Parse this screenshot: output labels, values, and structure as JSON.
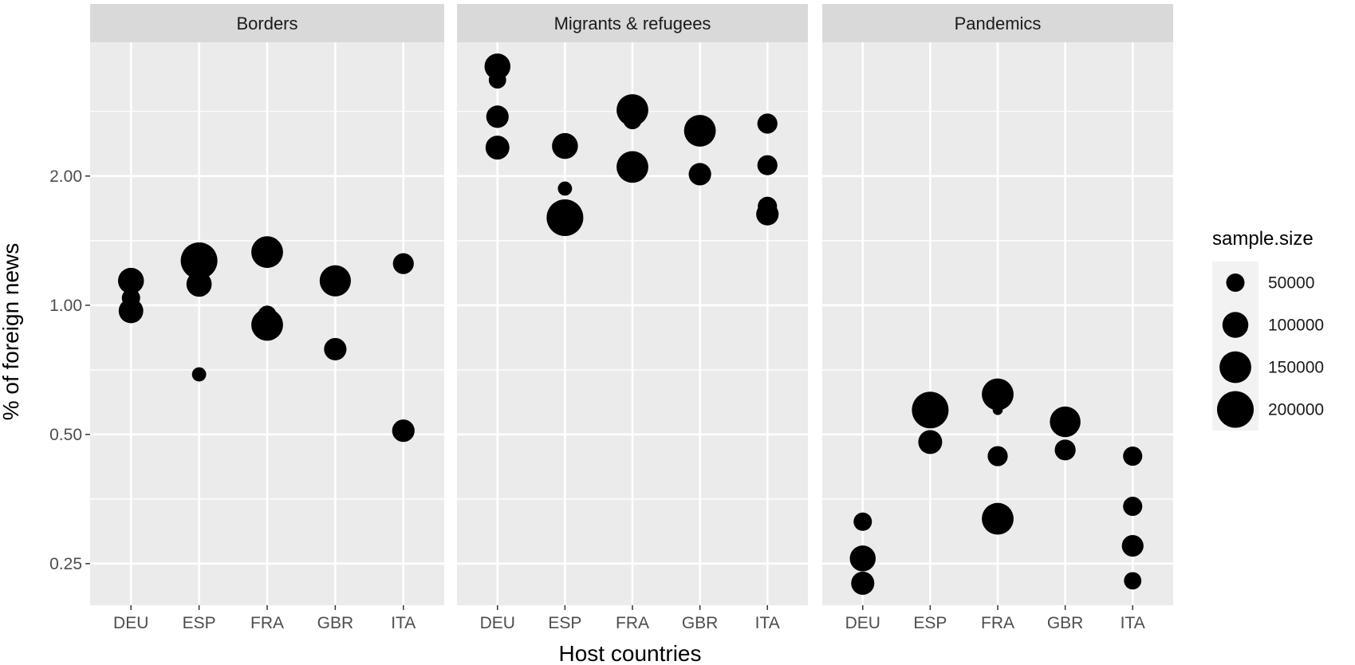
{
  "chart_data": {
    "type": "scatter",
    "xlabel": "Host countries",
    "ylabel": "% of foreign news",
    "y_scale": "log",
    "ylim": [
      0.2,
      4.1
    ],
    "y_ticks": [
      0.25,
      0.5,
      1.0,
      2.0
    ],
    "y_tick_labels": [
      "0.25",
      "0.50",
      "1.00",
      "2.00"
    ],
    "categories": [
      "DEU",
      "ESP",
      "FRA",
      "GBR",
      "ITA"
    ],
    "grid": true,
    "legend": {
      "title": "sample.size",
      "position": "right",
      "values": [
        50000,
        100000,
        150000,
        200000
      ],
      "labels": [
        "50000",
        "100000",
        "150000",
        "200000"
      ]
    },
    "panels": [
      {
        "title": "Borders",
        "points": [
          {
            "x": "DEU",
            "y": 1.14,
            "size": 100000
          },
          {
            "x": "DEU",
            "y": 1.04,
            "size": 50000
          },
          {
            "x": "DEU",
            "y": 0.97,
            "size": 90000
          },
          {
            "x": "ESP",
            "y": 1.27,
            "size": 200000
          },
          {
            "x": "ESP",
            "y": 1.12,
            "size": 95000
          },
          {
            "x": "ESP",
            "y": 0.69,
            "size": 30000
          },
          {
            "x": "FRA",
            "y": 1.33,
            "size": 150000
          },
          {
            "x": "FRA",
            "y": 0.95,
            "size": 50000
          },
          {
            "x": "FRA",
            "y": 0.9,
            "size": 150000
          },
          {
            "x": "GBR",
            "y": 1.14,
            "size": 145000
          },
          {
            "x": "GBR",
            "y": 0.79,
            "size": 75000
          },
          {
            "x": "ITA",
            "y": 1.25,
            "size": 65000
          },
          {
            "x": "ITA",
            "y": 0.51,
            "size": 75000
          }
        ]
      },
      {
        "title": "Migrants & refugees",
        "points": [
          {
            "x": "DEU",
            "y": 3.6,
            "size": 100000
          },
          {
            "x": "DEU",
            "y": 3.35,
            "size": 45000
          },
          {
            "x": "DEU",
            "y": 2.75,
            "size": 75000
          },
          {
            "x": "DEU",
            "y": 2.33,
            "size": 85000
          },
          {
            "x": "ESP",
            "y": 2.35,
            "size": 100000
          },
          {
            "x": "ESP",
            "y": 1.87,
            "size": 30000
          },
          {
            "x": "ESP",
            "y": 1.6,
            "size": 200000
          },
          {
            "x": "FRA",
            "y": 2.85,
            "size": 150000
          },
          {
            "x": "FRA",
            "y": 2.7,
            "size": 50000
          },
          {
            "x": "FRA",
            "y": 2.1,
            "size": 150000
          },
          {
            "x": "GBR",
            "y": 2.55,
            "size": 150000
          },
          {
            "x": "GBR",
            "y": 2.02,
            "size": 75000
          },
          {
            "x": "ITA",
            "y": 2.65,
            "size": 60000
          },
          {
            "x": "ITA",
            "y": 2.12,
            "size": 60000
          },
          {
            "x": "ITA",
            "y": 1.7,
            "size": 55000
          },
          {
            "x": "ITA",
            "y": 1.63,
            "size": 75000
          }
        ]
      },
      {
        "title": "Pandemics",
        "points": [
          {
            "x": "DEU",
            "y": 0.313,
            "size": 50000
          },
          {
            "x": "DEU",
            "y": 0.257,
            "size": 100000
          },
          {
            "x": "DEU",
            "y": 0.225,
            "size": 80000
          },
          {
            "x": "ESP",
            "y": 0.57,
            "size": 200000
          },
          {
            "x": "ESP",
            "y": 0.48,
            "size": 85000
          },
          {
            "x": "FRA",
            "y": 0.62,
            "size": 150000
          },
          {
            "x": "FRA",
            "y": 0.57,
            "size": 15000
          },
          {
            "x": "FRA",
            "y": 0.445,
            "size": 60000
          },
          {
            "x": "FRA",
            "y": 0.318,
            "size": 150000
          },
          {
            "x": "GBR",
            "y": 0.535,
            "size": 140000
          },
          {
            "x": "GBR",
            "y": 0.46,
            "size": 65000
          },
          {
            "x": "ITA",
            "y": 0.445,
            "size": 55000
          },
          {
            "x": "ITA",
            "y": 0.34,
            "size": 55000
          },
          {
            "x": "ITA",
            "y": 0.275,
            "size": 70000
          },
          {
            "x": "ITA",
            "y": 0.228,
            "size": 45000
          }
        ]
      }
    ]
  }
}
